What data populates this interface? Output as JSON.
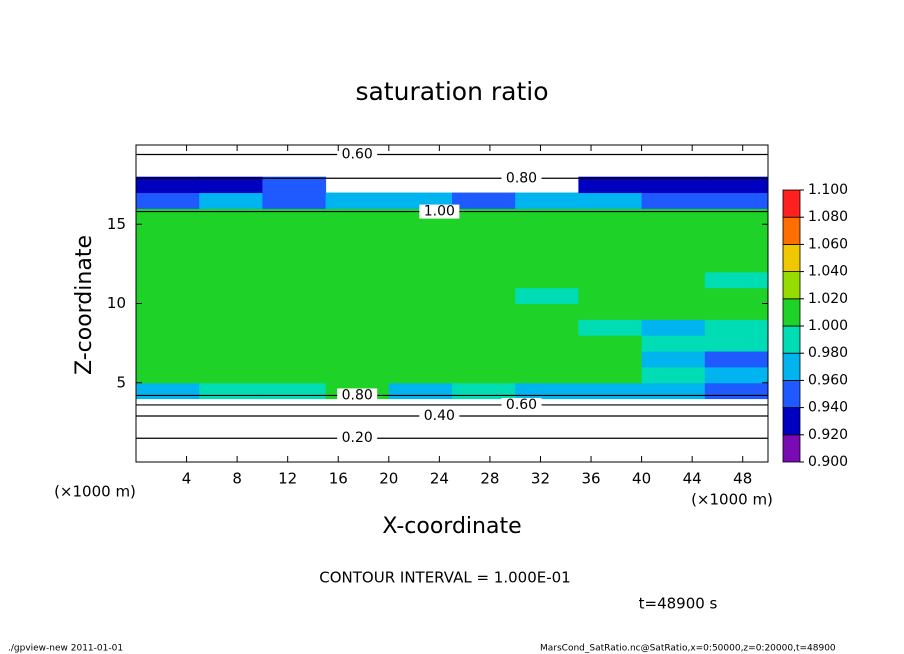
{
  "chart_data": {
    "type": "contour",
    "title": "saturation ratio",
    "x_label": "X-coordinate",
    "y_label": "Z-coordinate",
    "x_unit": "(×1000 m)",
    "y_unit": "(×1000 m)",
    "xlim": [
      0,
      50
    ],
    "ylim": [
      0,
      20
    ],
    "xticks": [
      4,
      8,
      12,
      16,
      20,
      24,
      28,
      32,
      36,
      40,
      44,
      48
    ],
    "yticks": [
      5,
      10,
      15
    ],
    "x_edges": [
      0,
      5,
      10,
      15,
      20,
      25,
      30,
      35,
      40,
      45,
      50
    ],
    "z_edges": [
      0,
      1,
      2,
      3,
      4,
      5,
      6,
      7,
      8,
      9,
      10,
      11,
      12,
      13,
      14,
      15,
      16,
      17,
      18,
      19,
      20
    ],
    "values": [
      [
        null,
        null,
        null,
        null,
        null,
        null,
        null,
        null,
        null,
        null
      ],
      [
        null,
        null,
        null,
        null,
        null,
        null,
        null,
        null,
        null,
        null
      ],
      [
        null,
        null,
        null,
        null,
        null,
        null,
        null,
        null,
        null,
        null
      ],
      [
        null,
        null,
        null,
        null,
        null,
        null,
        null,
        null,
        null,
        null
      ],
      [
        0.96,
        0.98,
        0.99,
        1.0,
        0.97,
        0.98,
        0.97,
        0.96,
        0.97,
        0.95
      ],
      [
        1.0,
        1.0,
        1.0,
        1.0,
        1.0,
        1.0,
        1.0,
        1.0,
        0.99,
        0.96
      ],
      [
        1.0,
        1.0,
        1.0,
        1.0,
        1.0,
        1.0,
        1.0,
        1.0,
        0.97,
        0.95
      ],
      [
        1.0,
        1.0,
        1.0,
        1.0,
        1.0,
        1.0,
        1.0,
        1.0,
        0.99,
        0.98
      ],
      [
        1.0,
        1.0,
        1.0,
        1.0,
        1.0,
        1.0,
        1.0,
        0.99,
        0.96,
        0.99
      ],
      [
        1.0,
        1.0,
        1.0,
        1.0,
        1.0,
        1.0,
        1.0,
        1.0,
        1.0,
        1.0
      ],
      [
        1.0,
        1.0,
        1.0,
        1.0,
        1.0,
        1.0,
        0.99,
        1.0,
        1.0,
        1.0
      ],
      [
        1.0,
        1.0,
        1.0,
        1.0,
        1.0,
        1.0,
        1.0,
        1.0,
        1.0,
        0.99
      ],
      [
        1.0,
        1.0,
        1.0,
        1.0,
        1.0,
        1.0,
        1.0,
        1.0,
        1.0,
        1.0
      ],
      [
        1.0,
        1.0,
        1.0,
        1.0,
        1.0,
        1.0,
        1.0,
        1.0,
        1.0,
        1.0
      ],
      [
        1.0,
        1.0,
        1.0,
        1.0,
        1.0,
        1.0,
        1.0,
        1.0,
        1.0,
        1.0
      ],
      [
        1.0,
        1.0,
        1.0,
        1.0,
        1.0,
        1.0,
        1.0,
        1.0,
        1.0,
        1.0
      ],
      [
        0.95,
        0.96,
        0.95,
        0.97,
        0.96,
        0.95,
        0.96,
        0.97,
        0.95,
        0.94
      ],
      [
        0.92,
        0.93,
        0.94,
        null,
        null,
        null,
        null,
        0.93,
        0.92,
        0.93
      ],
      [
        null,
        null,
        null,
        null,
        null,
        null,
        null,
        null,
        null,
        null
      ],
      [
        null,
        null,
        null,
        null,
        null,
        null,
        null,
        null,
        null,
        null
      ]
    ],
    "colorbar_ticks": [
      {
        "value": 0.9,
        "label": "0.900"
      },
      {
        "value": 0.92,
        "label": "0.920"
      },
      {
        "value": 0.94,
        "label": "0.940"
      },
      {
        "value": 0.96,
        "label": "0.960"
      },
      {
        "value": 0.98,
        "label": "0.980"
      },
      {
        "value": 1.0,
        "label": "1.000"
      },
      {
        "value": 1.02,
        "label": "1.020"
      },
      {
        "value": 1.04,
        "label": "1.040"
      },
      {
        "value": 1.06,
        "label": "1.060"
      },
      {
        "value": 1.08,
        "label": "1.080"
      },
      {
        "value": 1.1,
        "label": "1.100"
      }
    ],
    "colors": [
      "#7a0ab4",
      "#0000c0",
      "#1e5aff",
      "#00b4f0",
      "#00dcb4",
      "#1ed228",
      "#96dc00",
      "#f0c800",
      "#ff6e00",
      "#ff2020"
    ],
    "contours": [
      {
        "level": 0.2,
        "label": "0.20",
        "z": 1.5
      },
      {
        "level": 0.4,
        "label": "0.40",
        "z": 2.9
      },
      {
        "level": 0.6,
        "label": "0.60",
        "z": 3.6
      },
      {
        "level": 0.8,
        "label": "0.80",
        "z": 4.2
      },
      {
        "level": 1.0,
        "label": "1.00",
        "z": 15.8
      },
      {
        "level": 0.8,
        "label": "0.80",
        "z": 17.9
      },
      {
        "level": 0.6,
        "label": "0.60",
        "z": 19.4
      }
    ],
    "note": "CONTOUR INTERVAL = 1.000E-01",
    "time": "t=48900 s",
    "footer_left": "./gpview-new  2011-01-01",
    "footer_right": "MarsCond_SatRatio.nc@SatRatio,x=0:50000,z=0:20000,t=48900"
  }
}
